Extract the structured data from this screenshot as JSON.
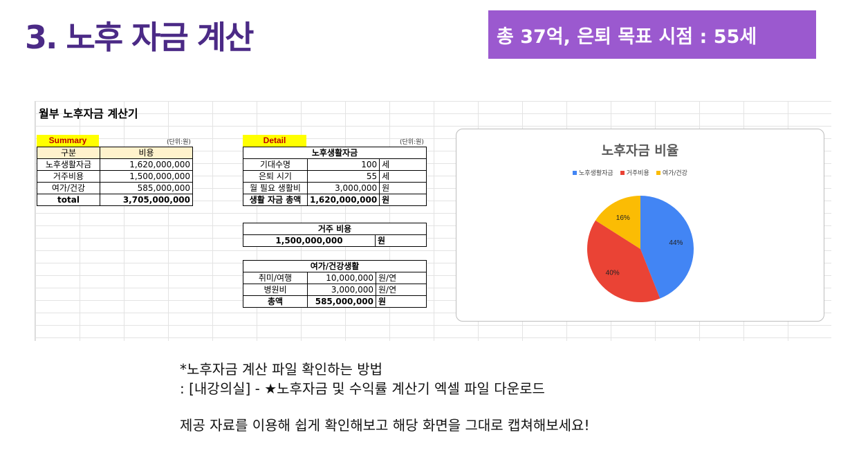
{
  "slide": {
    "title": "3. 노후 자금 계산",
    "banner": "총 37억, 은퇴 목표 시점 : 55세"
  },
  "sheet": {
    "title": "월부 노후자금 계산기",
    "summary": {
      "tag": "Summary",
      "unit": "(단위:원)",
      "headers": [
        "구분",
        "비용"
      ],
      "rows": [
        {
          "label": "노후생활자금",
          "value": "1,620,000,000"
        },
        {
          "label": "거주비용",
          "value": "1,500,000,000"
        },
        {
          "label": "여가/건강",
          "value": "585,000,000"
        }
      ],
      "total": {
        "label": "total",
        "value": "3,705,000,000"
      }
    },
    "detail": {
      "tag": "Detail",
      "unit": "(단위:원)",
      "living": {
        "header": "노후생활자금",
        "rows": [
          {
            "label": "기대수명",
            "value": "100",
            "unit": "세"
          },
          {
            "label": "은퇴 시기",
            "value": "55",
            "unit": "세"
          },
          {
            "label": "월 필요 생활비",
            "value": "3,000,000",
            "unit": "원"
          },
          {
            "label": "생활 자금 총액",
            "value": "1,620,000,000",
            "unit": "원"
          }
        ]
      },
      "housing": {
        "header": "거주 비용",
        "value": "1,500,000,000",
        "unit": "원"
      },
      "leisure": {
        "header": "여가/건강생활",
        "rows": [
          {
            "label": "취미/여행",
            "value": "10,000,000",
            "unit": "원/연"
          },
          {
            "label": "병원비",
            "value": "3,000,000",
            "unit": "원/연"
          },
          {
            "label": "총액",
            "value": "585,000,000",
            "unit": "원"
          }
        ]
      }
    }
  },
  "chart_data": {
    "type": "pie",
    "title": "노후자금 비율",
    "categories": [
      "노후생활자금",
      "거주비용",
      "여가/건강"
    ],
    "values": [
      44,
      40,
      16
    ],
    "labels": [
      "44%",
      "40%",
      "16%"
    ],
    "colors": [
      "#4285f4",
      "#ea4335",
      "#fbbc04"
    ],
    "legend": "top"
  },
  "notes": {
    "line1": "*노후자금 계산 파일 확인하는 방법",
    "line2": ": [내강의실] - ★노후자금 및 수익률 계산기 엑셀 파일 다운로드",
    "line3": "제공 자료를 이용해 쉽게 확인해보고 해당 화면을 그대로 캡쳐해보세요!"
  }
}
